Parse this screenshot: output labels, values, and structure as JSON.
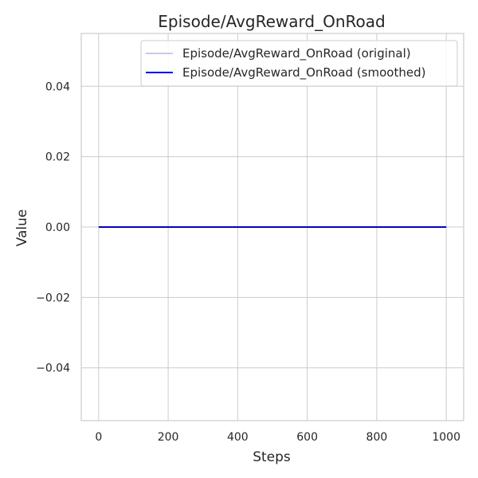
{
  "chart_data": {
    "type": "line",
    "title": "Episode/AvgReward_OnRoad",
    "xlabel": "Steps",
    "ylabel": "Value",
    "xlim": [
      -50,
      1050
    ],
    "ylim": [
      -0.055,
      0.055
    ],
    "x_ticks": [
      0,
      200,
      400,
      600,
      800,
      1000
    ],
    "x_tick_labels": [
      "0",
      "200",
      "400",
      "600",
      "800",
      "1000"
    ],
    "y_ticks": [
      -0.04,
      -0.02,
      0.0,
      0.02,
      0.04
    ],
    "y_tick_labels": [
      "−0.04",
      "−0.02",
      "0.00",
      "0.02",
      "0.04"
    ],
    "grid": true,
    "legend_position": "top-right",
    "series": [
      {
        "name": "Episode/AvgReward_OnRoad (original)",
        "color": "#b3b3ff",
        "x": [
          0,
          1000
        ],
        "values": [
          0,
          0
        ]
      },
      {
        "name": "Episode/AvgReward_OnRoad (smoothed)",
        "color": "#0000cc",
        "x": [
          0,
          1000
        ],
        "values": [
          0,
          0
        ]
      }
    ]
  }
}
